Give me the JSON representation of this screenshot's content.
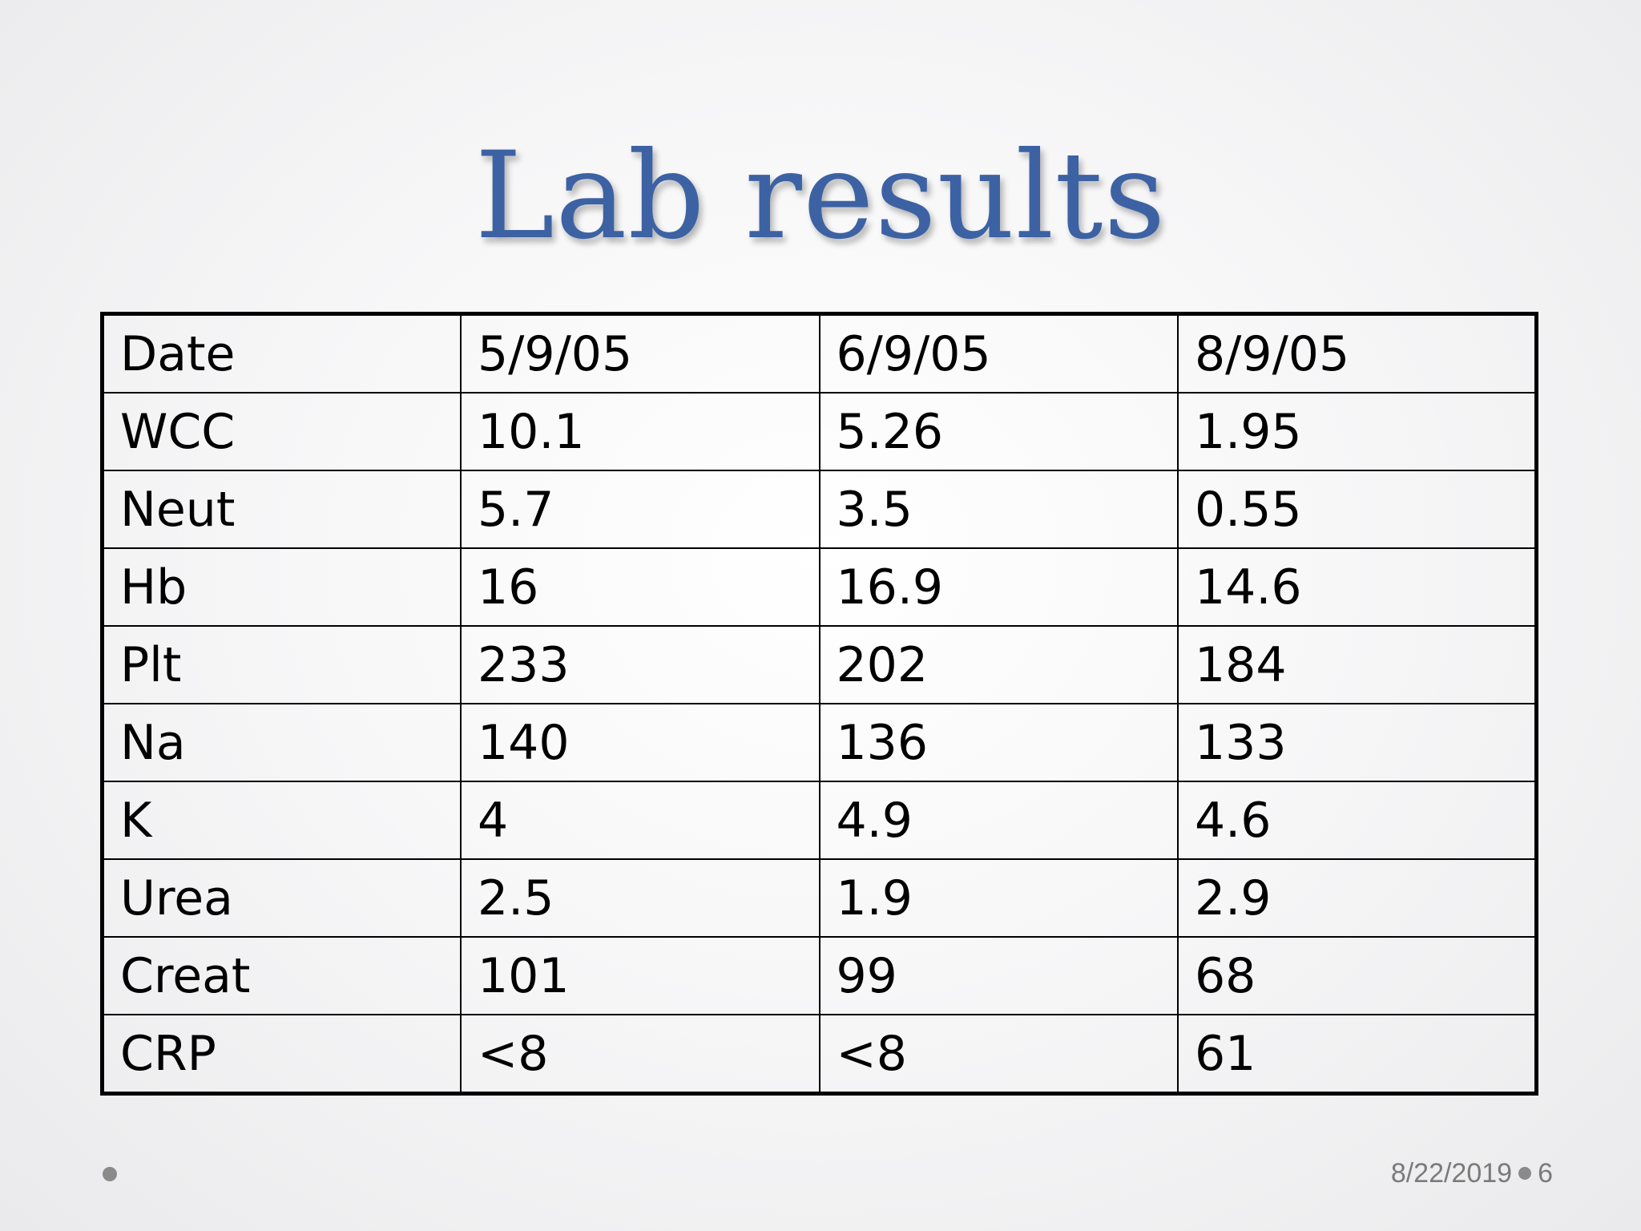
{
  "slide": {
    "title": "Lab results",
    "footer": {
      "date": "8/22/2019",
      "page_number": "6"
    }
  },
  "table": {
    "header": [
      "Date",
      "5/9/05",
      "6/9/05",
      "8/9/05"
    ],
    "rows": [
      [
        "WCC",
        "10.1",
        "5.26",
        "1.95"
      ],
      [
        "Neut",
        "5.7",
        "3.5",
        "0.55"
      ],
      [
        "Hb",
        "16",
        "16.9",
        "14.6"
      ],
      [
        "Plt",
        "233",
        "202",
        "184"
      ],
      [
        "Na",
        "140",
        "136",
        "133"
      ],
      [
        "K",
        "4",
        "4.9",
        "4.6"
      ],
      [
        "Urea",
        "2.5",
        "1.9",
        "2.9"
      ],
      [
        "Creat",
        "101",
        "99",
        "68"
      ],
      [
        "CRP",
        "<8",
        "<8",
        "61"
      ]
    ]
  },
  "colors": {
    "title": "#3c62a3",
    "text": "#000000",
    "footer": "#7a7a7a"
  }
}
